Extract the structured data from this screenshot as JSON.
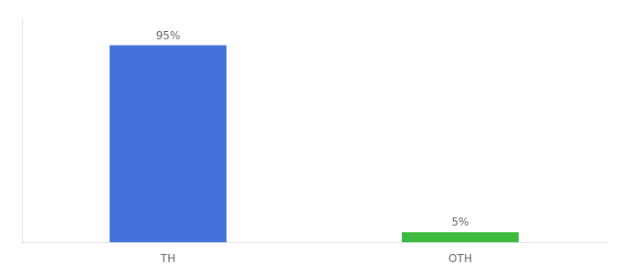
{
  "chart_data": {
    "type": "bar",
    "categories": [
      "TH",
      "OTH"
    ],
    "values": [
      95,
      5
    ],
    "value_labels": [
      "95%",
      "5%"
    ],
    "colors": [
      "#4472db",
      "#3dba3d"
    ],
    "ylim": [
      0,
      108
    ],
    "grid": false,
    "data_labels": true,
    "tick_labels": "x"
  }
}
